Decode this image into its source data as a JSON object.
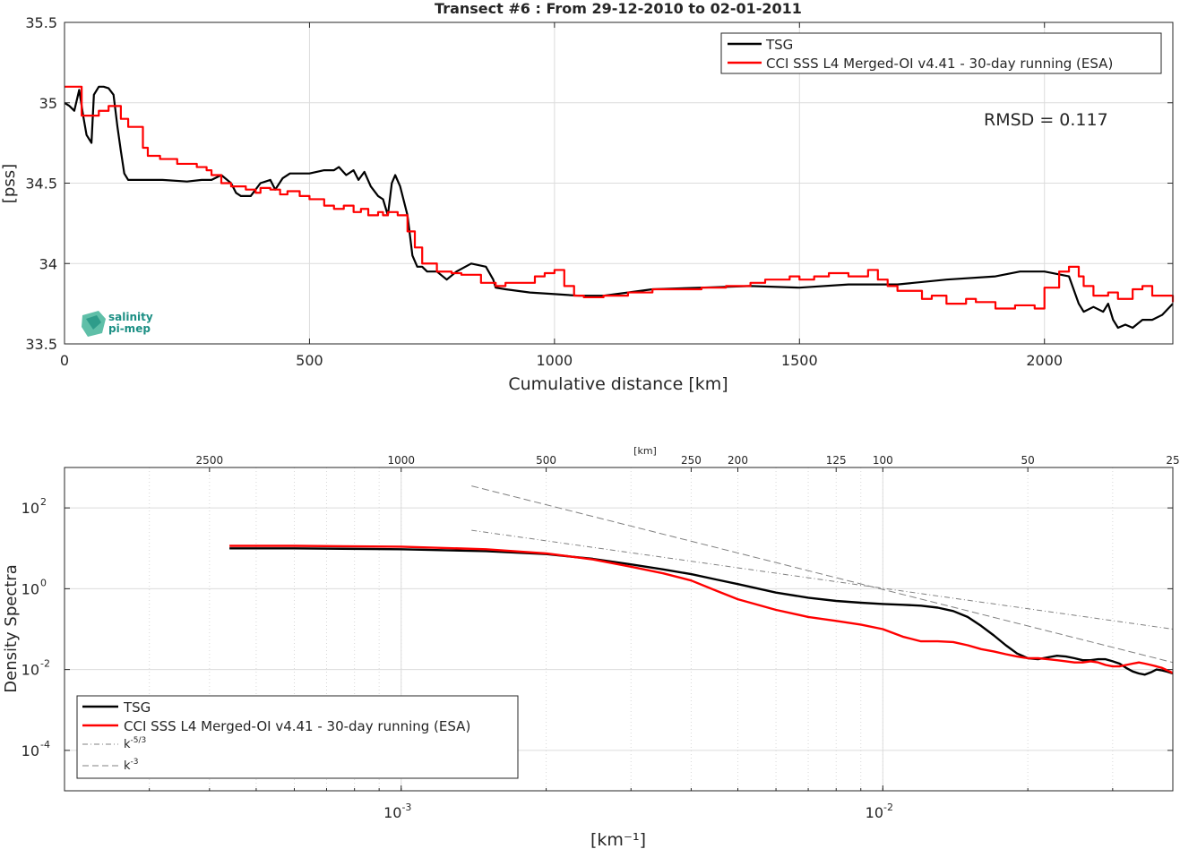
{
  "chart_data": [
    {
      "type": "line",
      "title": "Transect #6 : From 29-12-2010 to 02-01-2011",
      "xlabel": "Cumulative distance [km]",
      "ylabel": "[pss]",
      "xlim": [
        0,
        2262
      ],
      "ylim": [
        33.5,
        35.5
      ],
      "xticks": [
        0,
        500,
        1000,
        1500,
        2000
      ],
      "xtick_labels": [
        "0",
        "500",
        "1000",
        "1500",
        "2000"
      ],
      "yticks": [
        33.5,
        34,
        34.5,
        35,
        35.5
      ],
      "ytick_labels": [
        "33.5",
        "34",
        "34.5",
        "35",
        "35.5"
      ],
      "grid": true,
      "legend_position": "top-right",
      "annotation": "RMSD = 0.117",
      "logo_text": [
        "salinity",
        "pi-mep"
      ],
      "series": [
        {
          "name": "TSG",
          "color": "#000000",
          "x": [
            0,
            10,
            20,
            30,
            38,
            45,
            55,
            60,
            70,
            80,
            90,
            100,
            108,
            115,
            122,
            130,
            150,
            200,
            250,
            280,
            300,
            320,
            340,
            350,
            360,
            380,
            400,
            420,
            430,
            445,
            460,
            480,
            500,
            530,
            550,
            560,
            575,
            590,
            600,
            612,
            625,
            640,
            650,
            660,
            668,
            675,
            685,
            700,
            710,
            720,
            730,
            740,
            760,
            780,
            800,
            830,
            860,
            875,
            880,
            900,
            950,
            1000,
            1050,
            1100,
            1200,
            1300,
            1400,
            1500,
            1600,
            1700,
            1800,
            1900,
            1950,
            2000,
            2050,
            2070,
            2080,
            2100,
            2120,
            2130,
            2140,
            2150,
            2165,
            2180,
            2200,
            2220,
            2240,
            2262
          ],
          "y": [
            35.0,
            34.98,
            34.95,
            35.08,
            34.92,
            34.8,
            34.75,
            35.05,
            35.1,
            35.1,
            35.09,
            35.05,
            34.85,
            34.7,
            34.56,
            34.52,
            34.52,
            34.52,
            34.51,
            34.52,
            34.52,
            34.55,
            34.5,
            34.44,
            34.42,
            34.42,
            34.5,
            34.52,
            34.46,
            34.53,
            34.56,
            34.56,
            34.56,
            34.58,
            34.58,
            34.6,
            34.55,
            34.58,
            34.52,
            34.57,
            34.48,
            34.42,
            34.4,
            34.3,
            34.5,
            34.55,
            34.48,
            34.3,
            34.05,
            33.98,
            33.98,
            33.95,
            33.95,
            33.9,
            33.95,
            34.0,
            33.98,
            33.9,
            33.85,
            33.84,
            33.82,
            33.81,
            33.8,
            33.8,
            33.84,
            33.85,
            33.86,
            33.85,
            33.87,
            33.87,
            33.9,
            33.92,
            33.95,
            33.95,
            33.92,
            33.75,
            33.7,
            33.73,
            33.7,
            33.75,
            33.65,
            33.6,
            33.62,
            33.6,
            33.65,
            33.65,
            33.68,
            33.75
          ]
        },
        {
          "name": "CCI SSS L4 Merged-OI v4.41 - 30-day running (ESA)",
          "color": "#ff0000",
          "x": [
            0,
            35,
            70,
            90,
            115,
            130,
            160,
            170,
            195,
            230,
            270,
            290,
            300,
            320,
            340,
            370,
            390,
            400,
            420,
            440,
            455,
            480,
            500,
            530,
            550,
            570,
            590,
            605,
            620,
            640,
            650,
            660,
            680,
            700,
            715,
            730,
            760,
            790,
            810,
            850,
            880,
            900,
            960,
            980,
            1000,
            1020,
            1040,
            1060,
            1100,
            1150,
            1200,
            1240,
            1300,
            1350,
            1400,
            1430,
            1480,
            1500,
            1530,
            1560,
            1600,
            1640,
            1660,
            1680,
            1700,
            1750,
            1770,
            1800,
            1840,
            1860,
            1900,
            1940,
            1980,
            2000,
            2030,
            2050,
            2070,
            2080,
            2100,
            2130,
            2150,
            2180,
            2200,
            2220,
            2262
          ],
          "y": [
            35.1,
            34.92,
            34.95,
            34.98,
            34.9,
            34.85,
            34.72,
            34.67,
            34.65,
            34.62,
            34.6,
            34.58,
            34.55,
            34.5,
            34.48,
            34.46,
            34.44,
            34.47,
            34.46,
            34.43,
            34.45,
            34.42,
            34.4,
            34.36,
            34.34,
            34.36,
            34.32,
            34.34,
            34.3,
            34.32,
            34.3,
            34.32,
            34.3,
            34.2,
            34.1,
            34.0,
            33.95,
            33.94,
            33.93,
            33.88,
            33.86,
            33.88,
            33.92,
            33.94,
            33.96,
            33.86,
            33.8,
            33.79,
            33.8,
            33.82,
            33.84,
            33.84,
            33.85,
            33.86,
            33.88,
            33.9,
            33.92,
            33.9,
            33.92,
            33.94,
            33.92,
            33.96,
            33.9,
            33.86,
            33.83,
            33.78,
            33.8,
            33.75,
            33.78,
            33.76,
            33.72,
            33.74,
            33.72,
            33.85,
            33.95,
            33.98,
            33.92,
            33.86,
            33.8,
            33.82,
            33.78,
            33.84,
            33.86,
            33.8,
            33.76
          ]
        }
      ]
    },
    {
      "type": "line",
      "title": "",
      "xlabel": "[km⁻¹]",
      "ylabel": "Density Spectra",
      "top_axis_label": "[km]",
      "xscale": "log",
      "yscale": "log",
      "xlim": [
        0.0002,
        0.04
      ],
      "ylim": [
        1e-05,
        1000
      ],
      "xticks": [
        0.001,
        0.01
      ],
      "xtick_labels": [
        "10",
        "10"
      ],
      "xtick_exponents": [
        "-3",
        "-2"
      ],
      "yticks": [
        0.0001,
        0.01,
        1,
        100
      ],
      "ytick_labels": [
        "10",
        "10",
        "10",
        "10"
      ],
      "ytick_exponents": [
        "-4",
        "-2",
        "0",
        "2"
      ],
      "top_ticks_km": [
        2500,
        1000,
        500,
        250,
        200,
        125,
        100,
        50,
        25
      ],
      "top_tick_labels": [
        "2500",
        "1000",
        "500",
        "250",
        "200",
        "125",
        "100",
        "50",
        "25"
      ],
      "grid": true,
      "legend_position": "bottom-left",
      "series": [
        {
          "name": "TSG",
          "color": "#000000",
          "x": [
            0.00044,
            0.0006,
            0.001,
            0.0015,
            0.002,
            0.0025,
            0.003,
            0.0035,
            0.004,
            0.0045,
            0.005,
            0.006,
            0.007,
            0.008,
            0.009,
            0.01,
            0.011,
            0.012,
            0.013,
            0.014,
            0.015,
            0.016,
            0.017,
            0.018,
            0.019,
            0.02,
            0.021,
            0.022,
            0.023,
            0.024,
            0.025,
            0.026,
            0.027,
            0.028,
            0.029,
            0.03,
            0.031,
            0.032,
            0.033,
            0.034,
            0.035,
            0.036,
            0.037,
            0.038,
            0.039,
            0.04
          ],
          "y": [
            10,
            10,
            9.5,
            8.5,
            7.2,
            5.5,
            4,
            3,
            2.3,
            1.7,
            1.3,
            0.8,
            0.6,
            0.5,
            0.45,
            0.42,
            0.4,
            0.38,
            0.34,
            0.28,
            0.2,
            0.12,
            0.07,
            0.04,
            0.025,
            0.019,
            0.018,
            0.02,
            0.022,
            0.021,
            0.019,
            0.017,
            0.017,
            0.018,
            0.018,
            0.016,
            0.014,
            0.011,
            0.009,
            0.008,
            0.0075,
            0.0085,
            0.01,
            0.0095,
            0.0088,
            0.008
          ]
        },
        {
          "name": "CCI SSS L4 Merged-OI v4.41 - 30-day running (ESA)",
          "color": "#ff0000",
          "x": [
            0.00044,
            0.0006,
            0.001,
            0.0015,
            0.002,
            0.0025,
            0.003,
            0.0035,
            0.004,
            0.0045,
            0.005,
            0.006,
            0.007,
            0.008,
            0.009,
            0.01,
            0.011,
            0.012,
            0.013,
            0.014,
            0.015,
            0.016,
            0.017,
            0.018,
            0.019,
            0.02,
            0.021,
            0.022,
            0.023,
            0.024,
            0.025,
            0.026,
            0.027,
            0.028,
            0.029,
            0.03,
            0.031,
            0.032,
            0.033,
            0.034,
            0.035,
            0.036,
            0.037,
            0.038,
            0.039,
            0.04
          ],
          "y": [
            11.5,
            11.5,
            11,
            9.5,
            7.5,
            5.3,
            3.5,
            2.4,
            1.6,
            0.9,
            0.55,
            0.3,
            0.2,
            0.16,
            0.13,
            0.1,
            0.065,
            0.05,
            0.05,
            0.048,
            0.04,
            0.032,
            0.028,
            0.024,
            0.021,
            0.019,
            0.019,
            0.018,
            0.017,
            0.016,
            0.015,
            0.015,
            0.016,
            0.015,
            0.013,
            0.012,
            0.012,
            0.013,
            0.014,
            0.015,
            0.014,
            0.013,
            0.012,
            0.011,
            0.0095,
            0.0082
          ]
        },
        {
          "name": "k",
          "name_sup": "-5/3",
          "color": "#808080",
          "dash": "dashdot",
          "x": [
            0.0014,
            0.04
          ],
          "y": [
            28,
            0.1
          ]
        },
        {
          "name": "k",
          "name_sup": "-3",
          "color": "#808080",
          "dash": "dash",
          "x": [
            0.0014,
            0.04
          ],
          "y": [
            350,
            0.015
          ]
        }
      ]
    }
  ]
}
